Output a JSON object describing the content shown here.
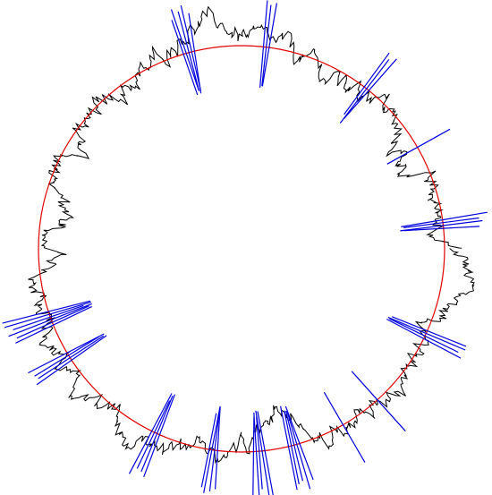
{
  "figure": {
    "description_free": true,
    "background": "#ffffff",
    "colors": {
      "circle": "#e00000",
      "curve": "#000000",
      "lines": "#0000dd"
    },
    "crossing_angles_deg": [
      -105,
      -83,
      -30,
      148,
      160,
      -52,
      -7,
      25,
      48,
      115,
      98,
      85,
      75,
      60
    ],
    "line_counts": [
      5,
      3,
      1,
      4,
      6,
      3,
      4,
      4,
      1,
      4,
      4,
      5,
      5,
      1
    ]
  }
}
